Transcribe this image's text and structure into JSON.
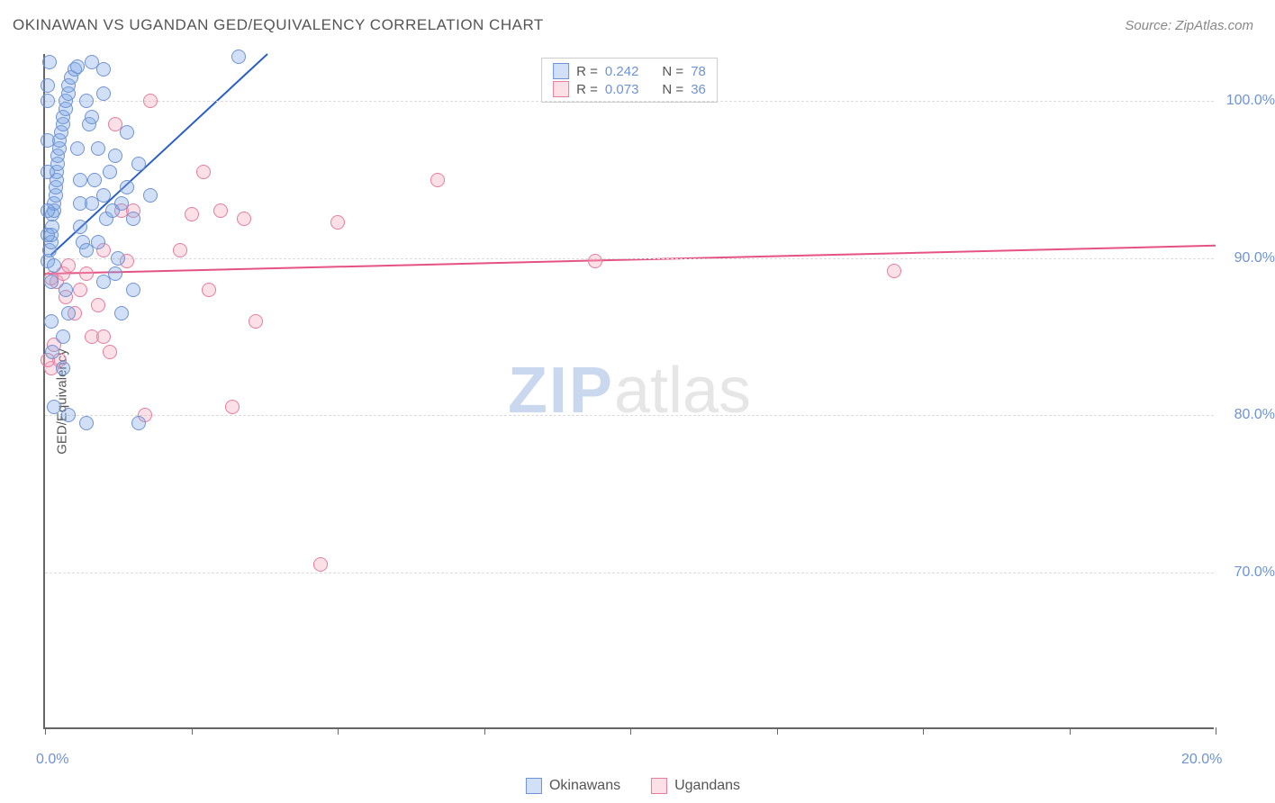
{
  "header": {
    "title": "OKINAWAN VS UGANDAN GED/EQUIVALENCY CORRELATION CHART",
    "source_prefix": "Source: ",
    "source_name": "ZipAtlas.com"
  },
  "chart": {
    "type": "scatter",
    "ylabel": "GED/Equivalency",
    "xlim": [
      0,
      20
    ],
    "ylim": [
      60,
      103
    ],
    "ytick_values": [
      70,
      80,
      90,
      100
    ],
    "ytick_labels": [
      "70.0%",
      "80.0%",
      "90.0%",
      "100.0%"
    ],
    "xtick_values": [
      0,
      2.5,
      5,
      7.5,
      10,
      12.5,
      15,
      17.5,
      20
    ],
    "xtick_label_left": "0.0%",
    "xtick_label_right": "20.0%",
    "grid_color": "#dcdcdc",
    "axis_color": "#666666",
    "background_color": "#ffffff",
    "marker_radius": 8,
    "marker_border_width": 1.2,
    "series": {
      "okinawans": {
        "label": "Okinawans",
        "fill_color": "rgba(123,167,230,0.35)",
        "stroke_color": "#6f93d2",
        "r_value": "0.242",
        "n_value": "78",
        "reg_line": {
          "x1": 0.1,
          "y1": 90.2,
          "x2": 3.8,
          "y2": 103,
          "color": "#2a5fc7",
          "width": 2
        },
        "points": [
          [
            0.05,
            89.8
          ],
          [
            0.08,
            90.5
          ],
          [
            0.1,
            91.0
          ],
          [
            0.1,
            91.5
          ],
          [
            0.12,
            92.0
          ],
          [
            0.12,
            92.8
          ],
          [
            0.15,
            93.0
          ],
          [
            0.15,
            93.5
          ],
          [
            0.18,
            94.0
          ],
          [
            0.18,
            94.5
          ],
          [
            0.2,
            95.0
          ],
          [
            0.2,
            95.5
          ],
          [
            0.22,
            96.0
          ],
          [
            0.22,
            96.5
          ],
          [
            0.25,
            97.0
          ],
          [
            0.25,
            97.5
          ],
          [
            0.28,
            98.0
          ],
          [
            0.3,
            98.5
          ],
          [
            0.3,
            99.0
          ],
          [
            0.35,
            99.5
          ],
          [
            0.35,
            100.0
          ],
          [
            0.4,
            100.5
          ],
          [
            0.4,
            101.0
          ],
          [
            0.45,
            101.5
          ],
          [
            0.5,
            102.0
          ],
          [
            0.55,
            102.2
          ],
          [
            0.55,
            97.0
          ],
          [
            0.6,
            95.0
          ],
          [
            0.6,
            93.5
          ],
          [
            0.6,
            92.0
          ],
          [
            0.65,
            91.0
          ],
          [
            0.7,
            90.5
          ],
          [
            0.7,
            100.0
          ],
          [
            0.75,
            98.5
          ],
          [
            0.8,
            102.5
          ],
          [
            0.8,
            99.0
          ],
          [
            0.8,
            93.5
          ],
          [
            0.85,
            95.0
          ],
          [
            0.9,
            91.0
          ],
          [
            0.9,
            97.0
          ],
          [
            1.0,
            94.0
          ],
          [
            1.0,
            102.0
          ],
          [
            1.0,
            88.5
          ],
          [
            1.0,
            100.5
          ],
          [
            1.05,
            92.5
          ],
          [
            1.1,
            95.5
          ],
          [
            1.15,
            93.0
          ],
          [
            1.2,
            96.5
          ],
          [
            1.2,
            89.0
          ],
          [
            1.25,
            90.0
          ],
          [
            1.3,
            93.5
          ],
          [
            1.3,
            86.5
          ],
          [
            1.4,
            94.5
          ],
          [
            1.4,
            98.0
          ],
          [
            1.5,
            92.5
          ],
          [
            1.5,
            88.0
          ],
          [
            1.6,
            96.0
          ],
          [
            1.6,
            79.5
          ],
          [
            0.3,
            85.0
          ],
          [
            0.3,
            83.0
          ],
          [
            0.35,
            88.0
          ],
          [
            0.4,
            86.5
          ],
          [
            0.1,
            88.5
          ],
          [
            0.1,
            86.0
          ],
          [
            0.12,
            84.0
          ],
          [
            0.15,
            89.5
          ],
          [
            0.15,
            80.5
          ],
          [
            0.05,
            95.5
          ],
          [
            0.05,
            97.5
          ],
          [
            0.05,
            101.0
          ],
          [
            0.05,
            93.0
          ],
          [
            0.05,
            91.5
          ],
          [
            0.4,
            80.0
          ],
          [
            1.8,
            94.0
          ],
          [
            0.08,
            102.5
          ],
          [
            0.05,
            100.0
          ],
          [
            0.7,
            79.5
          ],
          [
            3.3,
            102.8
          ]
        ]
      },
      "ugandans": {
        "label": "Ugandans",
        "fill_color": "rgba(244,166,188,0.35)",
        "stroke_color": "#e57d9d",
        "r_value": "0.073",
        "n_value": "36",
        "reg_line": {
          "x1": 0,
          "y1": 89.0,
          "x2": 20,
          "y2": 90.8,
          "color": "#e55284",
          "width": 2
        },
        "points": [
          [
            0.2,
            88.5
          ],
          [
            0.3,
            89.0
          ],
          [
            0.35,
            87.5
          ],
          [
            0.4,
            89.5
          ],
          [
            0.5,
            86.5
          ],
          [
            0.6,
            88.0
          ],
          [
            0.7,
            89.0
          ],
          [
            0.8,
            85.0
          ],
          [
            0.9,
            87.0
          ],
          [
            1.0,
            85.0
          ],
          [
            1.0,
            90.5
          ],
          [
            1.1,
            84.0
          ],
          [
            1.2,
            98.5
          ],
          [
            1.3,
            93.0
          ],
          [
            1.4,
            89.8
          ],
          [
            1.5,
            93.0
          ],
          [
            1.7,
            80.0
          ],
          [
            1.8,
            100.0
          ],
          [
            2.3,
            90.5
          ],
          [
            2.5,
            92.8
          ],
          [
            2.7,
            95.5
          ],
          [
            2.8,
            88.0
          ],
          [
            3.0,
            93.0
          ],
          [
            3.2,
            80.5
          ],
          [
            3.4,
            92.5
          ],
          [
            3.6,
            86.0
          ],
          [
            4.7,
            70.5
          ],
          [
            5.0,
            92.3
          ],
          [
            6.7,
            95.0
          ],
          [
            9.4,
            89.8
          ],
          [
            14.5,
            89.2
          ],
          [
            0.1,
            83.0
          ],
          [
            0.15,
            84.5
          ],
          [
            0.25,
            83.5
          ],
          [
            0.1,
            88.7
          ],
          [
            0.05,
            83.5
          ]
        ]
      }
    },
    "legend_labels": {
      "r_prefix": "R = ",
      "n_prefix": "N = "
    }
  },
  "watermark": {
    "part1": "ZIP",
    "part2": "atlas"
  }
}
